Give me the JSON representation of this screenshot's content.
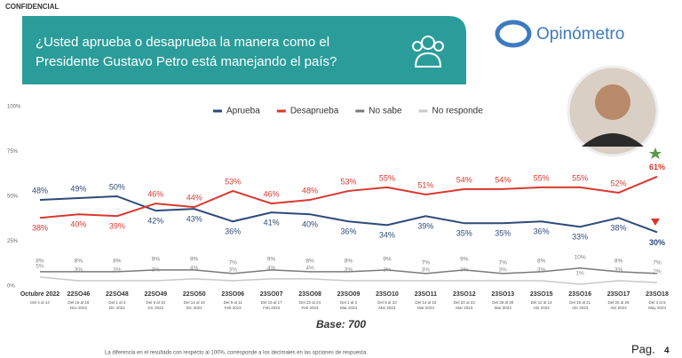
{
  "page": {
    "confidential": "CONFIDENCIAL",
    "brand": "Opinómetro",
    "base": "Base: 700",
    "footnote": "La diferencia en el resultado con respecto al 100%, corresponde a los decimales en las opciones de respuesta.",
    "page_label": "Pag.",
    "page_number": "4"
  },
  "chart_data": {
    "type": "line",
    "title": [
      "¿Usted aprueba o desaprueba la manera como el",
      "Presidente Gustavo Petro está manejando el país?"
    ],
    "categories": [
      "Octubre 2022",
      "22SO46",
      "22SO48",
      "22SO49",
      "22SO50",
      "23SO06",
      "23SO07",
      "23SO08",
      "23SO09",
      "23SO10",
      "23SO11",
      "23SO12",
      "23SO13",
      "23SO15",
      "23SO16",
      "23SO17",
      "23SO18"
    ],
    "category_dates": [
      [
        "Del 4 al 14"
      ],
      [
        "Del 16 al 18",
        "Nov 2022"
      ],
      [
        "Del 1 al 3",
        "Dic 2022"
      ],
      [
        "Del 9 al 10",
        "Dic 2022"
      ],
      [
        "Del 14 al 16",
        "Dic 2022"
      ],
      [
        "Del 9 al 11",
        "Feb 2023"
      ],
      [
        "Del 15 al 17",
        "Feb 2023"
      ],
      [
        "Del 22 al 24",
        "Feb 2023"
      ],
      [
        "Del 1 al 3",
        "Mar 2023"
      ],
      [
        "Del 9 al 10",
        "Mar 2023"
      ],
      [
        "Del 14 al 15",
        "Mar 2023"
      ],
      [
        "Del 22 al 23",
        "Mar 2023"
      ],
      [
        "Del 28 al 30",
        "Mar 2023"
      ],
      [
        "Del 12 al 14",
        "Abr 2023"
      ],
      [
        "Del 19 al 21",
        "Abr 2023"
      ],
      [
        "Del 25 al 28",
        "Abr 2023"
      ],
      [
        "Del 3 al 5",
        "May 2023"
      ]
    ],
    "series": [
      {
        "name": "Aprueba",
        "color": "#2e4a7a",
        "values": [
          48,
          49,
          50,
          42,
          43,
          36,
          41,
          40,
          36,
          34,
          39,
          35,
          35,
          36,
          33,
          38,
          30
        ],
        "value_labels": [
          "48%",
          "49%",
          "50%",
          "42%",
          "43%",
          "36%",
          "41%",
          "40%",
          "36%",
          "34%",
          "39%",
          "35%",
          "35%",
          "36%",
          "33%",
          "38%",
          "30%"
        ]
      },
      {
        "name": "Desaprueba",
        "color": "#d9382f",
        "values": [
          38,
          40,
          39,
          46,
          44,
          53,
          46,
          48,
          53,
          55,
          51,
          54,
          54,
          55,
          55,
          52,
          61
        ],
        "value_labels": [
          "38%",
          "40%",
          "39%",
          "46%",
          "44%",
          "53%",
          "46%",
          "48%",
          "53%",
          "55%",
          "51%",
          "54%",
          "54%",
          "55%",
          "55%",
          "52%",
          "61%"
        ]
      },
      {
        "name": "No sabe",
        "color": "#7a7a7a",
        "values": [
          8,
          8,
          8,
          9,
          9,
          7,
          9,
          8,
          8,
          9,
          7,
          9,
          7,
          8,
          10,
          8,
          7
        ],
        "value_labels": [
          "8%",
          "8%",
          "8%",
          "9%",
          "9%",
          "7%",
          "9%",
          "8%",
          "8%",
          "9%",
          "7%",
          "9%",
          "7%",
          "8%",
          "10%",
          "8%",
          "7%"
        ]
      },
      {
        "name": "No responde",
        "color": "#c8c8c8",
        "values": [
          5,
          3,
          3,
          3,
          4,
          3,
          4,
          4,
          3,
          3,
          3,
          3,
          3,
          3,
          1,
          3,
          2
        ],
        "value_labels": [
          "5%",
          "3%",
          "3%",
          "3%",
          "4%",
          "3%",
          "4%",
          "4%",
          "3%",
          "3%",
          "3%",
          "3%",
          "3%",
          "3%",
          "1%",
          "3%",
          "2%"
        ]
      }
    ],
    "ylim": [
      0,
      100
    ],
    "yticks": [
      {
        "value": 0,
        "label": "0%"
      },
      {
        "value": 25,
        "label": "25%"
      },
      {
        "value": 50,
        "label": "50%"
      },
      {
        "value": 75,
        "label": "75%"
      },
      {
        "value": 100,
        "label": "100%"
      }
    ]
  }
}
